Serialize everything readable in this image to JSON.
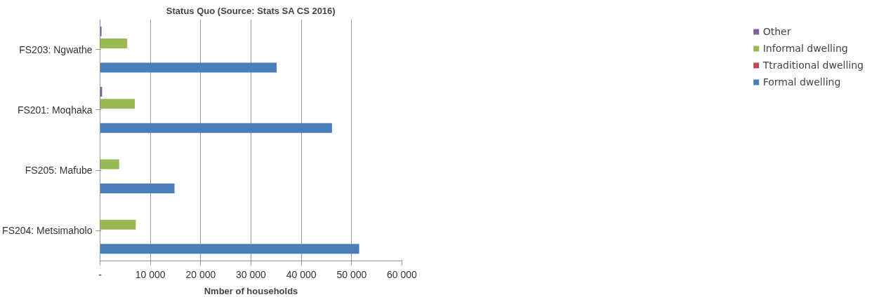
{
  "chart_data": {
    "type": "bar",
    "orientation": "horizontal",
    "title": "Status Quo (Source: Stats SA CS 2016)",
    "xlabel": "Nmber of households",
    "categories": [
      "FS203: Ngwathe",
      "FS201: Moqhaka",
      "FS205: Mafube",
      "FS204: Metsimaholo"
    ],
    "series": [
      {
        "name": "Formal dwelling",
        "color": "#4a7ebb",
        "values": [
          35100,
          46100,
          14800,
          51500
        ]
      },
      {
        "name": "Ttraditional dwelling",
        "color": "#be4b48",
        "values": [
          0,
          0,
          0,
          0
        ]
      },
      {
        "name": "Informal dwelling",
        "color": "#98b954",
        "values": [
          5400,
          6900,
          3800,
          7100
        ]
      },
      {
        "name": "Other",
        "color": "#7d60a0",
        "values": [
          300,
          400,
          0,
          0
        ]
      }
    ],
    "xlim": [
      0,
      60000
    ],
    "xticks": [
      {
        "value": 0,
        "label": "-"
      },
      {
        "value": 10000,
        "label": "10 000"
      },
      {
        "value": 20000,
        "label": "20 000"
      },
      {
        "value": 30000,
        "label": "30 000"
      },
      {
        "value": 40000,
        "label": "40 000"
      },
      {
        "value": 50000,
        "label": "50 000"
      },
      {
        "value": 60000,
        "label": "60 000"
      }
    ],
    "grid": "x",
    "legend": "right"
  }
}
